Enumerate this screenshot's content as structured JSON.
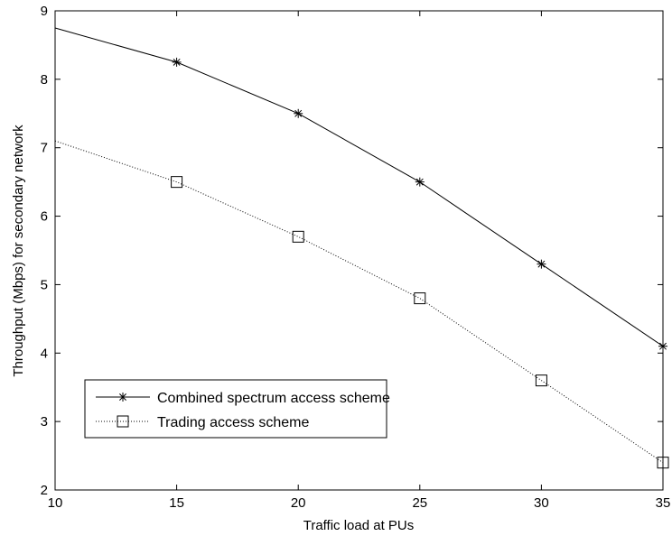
{
  "chart_data": {
    "type": "line",
    "title": "",
    "xlabel": "Traffic load at PUs",
    "ylabel": "Throughput (Mbps) for secondary network",
    "xlim": [
      10,
      35
    ],
    "ylim": [
      2,
      9
    ],
    "xticks": [
      10,
      15,
      20,
      25,
      30,
      35
    ],
    "yticks": [
      2,
      3,
      4,
      5,
      6,
      7,
      8,
      9
    ],
    "grid": false,
    "legend_position": "lower-left",
    "series": [
      {
        "name": "Combined spectrum access scheme",
        "marker": "asterisk",
        "line_style": "solid",
        "color": "#000000",
        "x": [
          10,
          15,
          20,
          25,
          30,
          35
        ],
        "y": [
          8.75,
          8.25,
          7.5,
          6.5,
          5.3,
          4.1
        ],
        "marked": [
          false,
          true,
          true,
          true,
          true,
          true
        ]
      },
      {
        "name": "Trading access scheme",
        "marker": "square",
        "line_style": "dotted",
        "color": "#000000",
        "x": [
          10,
          15,
          20,
          25,
          30,
          35
        ],
        "y": [
          7.1,
          6.5,
          5.7,
          4.8,
          3.6,
          2.4
        ],
        "marked": [
          false,
          true,
          true,
          true,
          true,
          true
        ]
      }
    ]
  }
}
